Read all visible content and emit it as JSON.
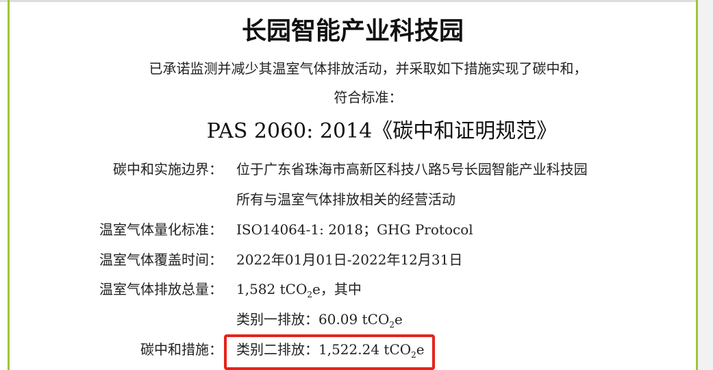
{
  "title": "长园智能产业科技园",
  "statement_line1": "已承诺监测并减少其温室气体排放活动，并采取如下措施实现了碳中和，",
  "statement_line2": "符合标准：",
  "standard": "PAS 2060: 2014《碳中和证明规范》",
  "rows": [
    {
      "label": "碳中和实施边界：",
      "value": "位于广东省珠海市高新区科技八路5号长园智能产业科技园",
      "value2": "所有与温室气体排放相关的经营活动"
    },
    {
      "label": "温室气体量化标准：",
      "value": "ISO14064-1: 2018；GHG Protocol"
    },
    {
      "label": "温室气体覆盖时间：",
      "value": "2022年01月01日-2022年12月31日"
    },
    {
      "label": "温室气体排放总量：",
      "value_pre": "1,582 tCO",
      "value_post": "e，其中"
    },
    {
      "label": "",
      "value_pre": "类别一排放：60.09 tCO",
      "value_post": "e"
    },
    {
      "label": "碳中和措施：",
      "value_pre": "类别二排放：1,522.24 tCO",
      "value_post": "e"
    }
  ],
  "subscript": "2",
  "colors": {
    "border": "#9dc63b",
    "highlight": "#e5231b"
  }
}
